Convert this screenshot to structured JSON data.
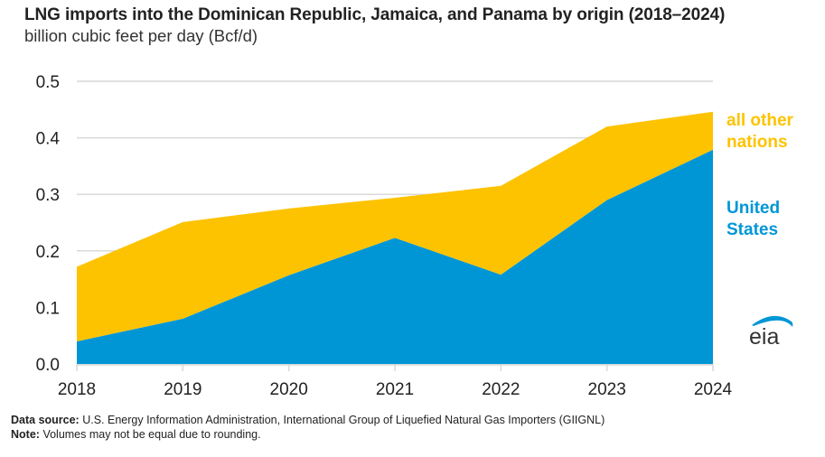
{
  "header": {
    "title": "LNG imports into the Dominican Republic, Jamaica, and Panama by origin (2018–2024)",
    "subtitle": "billion cubic feet per day (Bcf/d)"
  },
  "chart_data": {
    "type": "area",
    "stacked": true,
    "title": "LNG imports into the Dominican Republic, Jamaica, and Panama by origin (2018–2024)",
    "ylabel": "billion cubic feet per day (Bcf/d)",
    "xlabel": "",
    "x": [
      "2018",
      "2019",
      "2020",
      "2021",
      "2022",
      "2023",
      "2024"
    ],
    "ylim": [
      0,
      0.5
    ],
    "yticks": [
      "0.0",
      "0.1",
      "0.2",
      "0.3",
      "0.4",
      "0.5"
    ],
    "grid": true,
    "legend_placement": "right (inline labels)",
    "series": [
      {
        "name": "United States",
        "label_lines": [
          "United",
          "States"
        ],
        "color": "#0096d6",
        "values": [
          0.04,
          0.08,
          0.157,
          0.223,
          0.158,
          0.29,
          0.379
        ]
      },
      {
        "name": "all other nations",
        "label_lines": [
          "all other",
          "nations"
        ],
        "color": "#fdc300",
        "values": [
          0.132,
          0.171,
          0.118,
          0.071,
          0.157,
          0.13,
          0.067
        ]
      }
    ]
  },
  "footer": {
    "source_label": "Data source:",
    "source_text": "U.S. Energy Information Administration, International Group of Liquefied Natural Gas Importers (GIIGNL)",
    "note_label": "Note:",
    "note_text": "Volumes may not be equal due to rounding."
  },
  "logo": {
    "text": "eia",
    "icon": "eia-logo-icon",
    "arc_color": "#0096d6"
  }
}
